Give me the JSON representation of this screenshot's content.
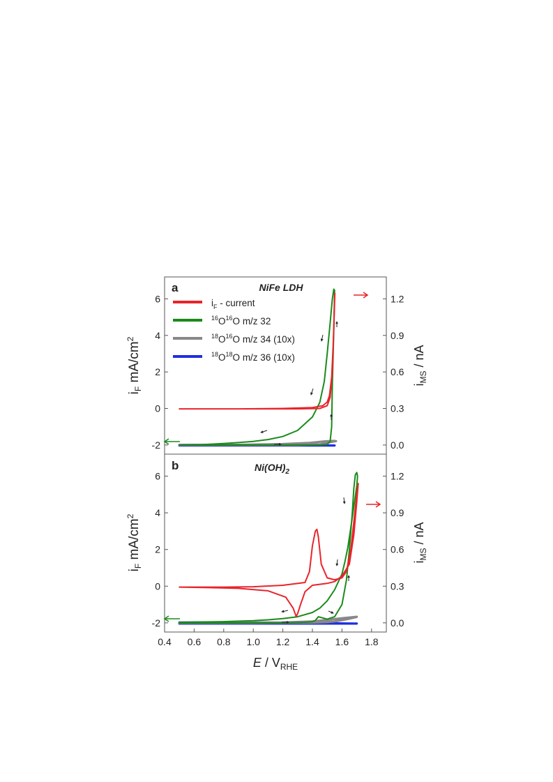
{
  "chart_data": [
    {
      "type": "line",
      "panel_label": "a",
      "title": "NiFe LDH",
      "xlim": [
        0.4,
        1.9
      ],
      "ylim_left": [
        -2.5,
        7.2
      ],
      "ylim_right": [
        -0.075,
        1.38
      ],
      "ylabel_left": {
        "main": "i",
        "sub": "F",
        "rest": " mA/cm",
        "sup": "2"
      },
      "ylabel_right": {
        "main": "i",
        "sub": "MS",
        "rest": " / nA"
      },
      "yticks_left": [
        -2,
        0,
        2,
        4,
        6
      ],
      "yticks_right": [
        0.0,
        0.3,
        0.6,
        0.9,
        1.2
      ],
      "legend": [
        {
          "label": "i",
          "sub": "F",
          "rest": " - current",
          "color": "#e8242a"
        },
        {
          "sup1": "16",
          "el1": "O",
          "sup2": "16",
          "el2": "O",
          "rest": " m/z 32",
          "color": "#1a8a1a"
        },
        {
          "sup1": "18",
          "el1": "O",
          "sup2": "16",
          "el2": "O",
          "rest": " m/z 34 (10x)",
          "color": "#888888"
        },
        {
          "sup1": "18",
          "el1": "O",
          "sup2": "18",
          "el2": "O",
          "rest": " m/z 36 (10x)",
          "color": "#1f2fe0"
        }
      ],
      "series": [
        {
          "axis": "left",
          "color": "#e8242a",
          "x": [
            0.5,
            1.0,
            1.3,
            1.45,
            1.5,
            1.52,
            1.535,
            1.545,
            1.55,
            1.552,
            1.548,
            1.54,
            1.53,
            1.515,
            1.5,
            1.47,
            1.4,
            1.2,
            0.9,
            0.5
          ],
          "y": [
            -0.02,
            -0.02,
            -0.02,
            0.0,
            0.15,
            0.6,
            2.0,
            4.5,
            6.0,
            6.3,
            5.3,
            3.4,
            1.7,
            0.7,
            0.35,
            0.15,
            0.05,
            0.0,
            -0.02,
            -0.02
          ]
        },
        {
          "axis": "right",
          "color": "#1a8a1a",
          "x": [
            0.5,
            0.8,
            1.0,
            1.2,
            1.35,
            1.45,
            1.5,
            1.52,
            1.53,
            1.535,
            1.545,
            1.55,
            1.545,
            1.535,
            1.52,
            1.5,
            1.48,
            1.45,
            1.4,
            1.3,
            1.2,
            1.1,
            1.0,
            0.9,
            0.8,
            0.65,
            0.5
          ],
          "y": [
            0.0,
            0.0,
            0.0,
            0.0,
            0.0,
            0.0,
            0.005,
            0.03,
            0.15,
            0.5,
            0.95,
            1.27,
            1.28,
            1.2,
            1.0,
            0.75,
            0.52,
            0.35,
            0.23,
            0.12,
            0.07,
            0.045,
            0.03,
            0.02,
            0.012,
            0.003,
            0.0
          ]
        },
        {
          "axis": "right",
          "color": "#888888",
          "x": [
            0.5,
            1.0,
            1.3,
            1.45,
            1.5,
            1.54,
            1.56,
            1.54,
            1.48,
            1.38,
            1.2,
            0.9,
            0.5
          ],
          "y": [
            0.0,
            0.0,
            0.0,
            0.006,
            0.018,
            0.028,
            0.032,
            0.034,
            0.03,
            0.018,
            0.008,
            0.002,
            0.0
          ]
        },
        {
          "axis": "right",
          "color": "#1f2fe0",
          "x": [
            0.5,
            1.0,
            1.55,
            1.0,
            0.5
          ],
          "y": [
            -0.004,
            -0.004,
            -0.004,
            0.0,
            0.0
          ]
        }
      ]
    },
    {
      "type": "line",
      "panel_label": "b",
      "title": "Ni(OH)",
      "title_sub": "2",
      "xlim": [
        0.4,
        1.9
      ],
      "ylim_left": [
        -2.5,
        7.2
      ],
      "ylim_right": [
        -0.075,
        1.38
      ],
      "xticks": [
        0.4,
        0.6,
        0.8,
        1.0,
        1.2,
        1.4,
        1.6,
        1.8
      ],
      "xlabel": {
        "main": "E",
        "rest": " / V",
        "sub": "RHE"
      },
      "ylabel_left": {
        "main": "i",
        "sub": "F",
        "rest": " mA/cm",
        "sup": "2"
      },
      "ylabel_right": {
        "main": "i",
        "sub": "MS",
        "rest": " / nA"
      },
      "yticks_left": [
        -2,
        0,
        2,
        4,
        6
      ],
      "yticks_right": [
        0.0,
        0.3,
        0.6,
        0.9,
        1.2
      ],
      "series": [
        {
          "axis": "left",
          "color": "#e8242a",
          "x": [
            0.5,
            0.8,
            1.0,
            1.2,
            1.35,
            1.38,
            1.4,
            1.42,
            1.43,
            1.44,
            1.46,
            1.5,
            1.55,
            1.6,
            1.63,
            1.66,
            1.68,
            1.7,
            1.71,
            1.7,
            1.68,
            1.65,
            1.6,
            1.55,
            1.5,
            1.45,
            1.4,
            1.35,
            1.32,
            1.3,
            1.29,
            1.27,
            1.22,
            1.1,
            0.9,
            0.7,
            0.5
          ],
          "y": [
            -0.05,
            -0.05,
            -0.03,
            0.05,
            0.2,
            0.8,
            2.2,
            3.0,
            3.1,
            2.7,
            1.2,
            0.45,
            0.35,
            0.45,
            0.8,
            2.0,
            3.5,
            5.0,
            5.6,
            4.6,
            2.8,
            1.2,
            0.55,
            0.25,
            0.15,
            0.1,
            0.05,
            -0.3,
            -1.0,
            -1.5,
            -1.65,
            -1.2,
            -0.6,
            -0.25,
            -0.12,
            -0.08,
            -0.05
          ]
        },
        {
          "axis": "right",
          "color": "#1a8a1a",
          "x": [
            0.5,
            0.8,
            1.0,
            1.2,
            1.35,
            1.4,
            1.42,
            1.44,
            1.47,
            1.5,
            1.55,
            1.6,
            1.63,
            1.65,
            1.67,
            1.68,
            1.69,
            1.7,
            1.705,
            1.7,
            1.68,
            1.66,
            1.64,
            1.62,
            1.6,
            1.55,
            1.5,
            1.45,
            1.4,
            1.3,
            1.2,
            1.1,
            1.0,
            0.8,
            0.5
          ],
          "y": [
            0.0,
            0.0,
            0.0,
            0.0,
            0.005,
            0.01,
            0.02,
            0.05,
            0.04,
            0.03,
            0.05,
            0.15,
            0.35,
            0.6,
            0.9,
            1.1,
            1.21,
            1.23,
            1.2,
            1.12,
            0.95,
            0.78,
            0.62,
            0.5,
            0.4,
            0.27,
            0.18,
            0.12,
            0.085,
            0.05,
            0.035,
            0.025,
            0.018,
            0.01,
            0.005
          ]
        },
        {
          "axis": "right",
          "color": "#888888",
          "x": [
            0.5,
            1.0,
            1.4,
            1.5,
            1.55,
            1.6,
            1.65,
            1.7,
            1.7,
            1.6,
            1.5,
            1.4,
            1.2,
            0.9,
            0.5
          ],
          "y": [
            0.0,
            0.0,
            0.002,
            0.006,
            0.012,
            0.022,
            0.034,
            0.048,
            0.05,
            0.038,
            0.024,
            0.012,
            0.004,
            0.001,
            0.0
          ]
        },
        {
          "axis": "right",
          "color": "#1f2fe0",
          "x": [
            0.5,
            1.0,
            1.7,
            1.0,
            0.5
          ],
          "y": [
            -0.006,
            -0.006,
            -0.006,
            0.003,
            0.003
          ]
        }
      ]
    }
  ]
}
